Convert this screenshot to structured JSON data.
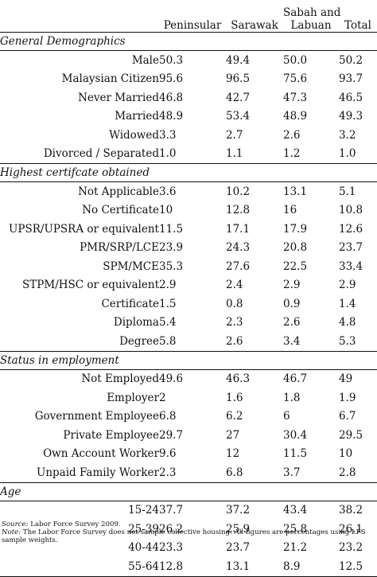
{
  "headers": {
    "label": "",
    "columns": [
      "Peninsular",
      "Sarawak",
      "Sabah and Labuan",
      "Total"
    ]
  },
  "sections": [
    {
      "title": "General Demographics",
      "rows": [
        {
          "label": "Male",
          "values": [
            "50.3",
            "49.4",
            "50.0",
            "50.2"
          ]
        },
        {
          "label": "Malaysian Citizen",
          "values": [
            "95.6",
            "96.5",
            "75.6",
            "93.7"
          ]
        },
        {
          "label": "Never Married",
          "values": [
            "46.8",
            "42.7",
            "47.3",
            "46.5"
          ]
        },
        {
          "label": "Married",
          "values": [
            "48.9",
            "53.4",
            "48.9",
            "49.3"
          ]
        },
        {
          "label": "Widowed",
          "values": [
            "3.3",
            "2.7",
            "2.6",
            "3.2"
          ]
        },
        {
          "label": "Divorced / Separated",
          "values": [
            "1.0",
            "1.1",
            "1.2",
            "1.0"
          ]
        }
      ]
    },
    {
      "title": "Highest certifcate obtained",
      "rows": [
        {
          "label": "Not Applicable",
          "values": [
            "3.6",
            "10.2",
            "13.1",
            "5.1"
          ]
        },
        {
          "label": "No Certificate",
          "values": [
            "10",
            "12.8",
            "16",
            "10.8"
          ]
        },
        {
          "label": "UPSR/UPSRA or equivalent",
          "values": [
            "11.5",
            "17.1",
            "17.9",
            "12.6"
          ]
        },
        {
          "label": "PMR/SRP/LCE",
          "values": [
            "23.9",
            "24.3",
            "20.8",
            "23.7"
          ]
        },
        {
          "label": "SPM/MCE",
          "values": [
            "35.3",
            "27.6",
            "22.5",
            "33.4"
          ]
        },
        {
          "label": "STPM/HSC or equivalent",
          "values": [
            "2.9",
            "2.4",
            "2.9",
            "2.9"
          ]
        },
        {
          "label": "Certificate",
          "values": [
            "1.5",
            "0.8",
            "0.9",
            "1.4"
          ]
        },
        {
          "label": "Diploma",
          "values": [
            "5.4",
            "2.3",
            "2.6",
            "4.8"
          ]
        },
        {
          "label": "Degree",
          "values": [
            "5.8",
            "2.6",
            "3.4",
            "5.3"
          ]
        }
      ]
    },
    {
      "title": "Status in employment",
      "rows": [
        {
          "label": "Not Employed",
          "values": [
            "49.6",
            "46.3",
            "46.7",
            "49"
          ]
        },
        {
          "label": "Employer",
          "values": [
            "2",
            "1.6",
            "1.8",
            "1.9"
          ]
        },
        {
          "label": "Government Employee",
          "values": [
            "6.8",
            "6.2",
            "6",
            "6.7"
          ]
        },
        {
          "label": "Private Employee",
          "values": [
            "29.7",
            "27",
            "30.4",
            "29.5"
          ]
        },
        {
          "label": "Own Account Worker",
          "values": [
            "9.6",
            "12",
            "11.5",
            "10"
          ]
        },
        {
          "label": "Unpaid Family Worker",
          "values": [
            "2.3",
            "6.8",
            "3.7",
            "2.8"
          ]
        }
      ]
    },
    {
      "title": "Age",
      "rows": [
        {
          "label": "15-24",
          "values": [
            "37.7",
            "37.2",
            "43.4",
            "38.2"
          ]
        },
        {
          "label": "25-39",
          "values": [
            "26.2",
            "25.9",
            "25.8",
            "26.1"
          ]
        },
        {
          "label": "40-44",
          "values": [
            "23.3",
            "23.7",
            "21.2",
            "23.2"
          ]
        },
        {
          "label": "55-64",
          "values": [
            "12.8",
            "13.1",
            "8.9",
            "12.5"
          ]
        }
      ]
    }
  ],
  "notes": {
    "source_label": "Source:",
    "source_text": "Labor Force Survey 2009.",
    "note_label": "Note:",
    "note_text": "The Labor Force Survey does not sample collective housing. All figures are percentages using LFS sample weights."
  }
}
